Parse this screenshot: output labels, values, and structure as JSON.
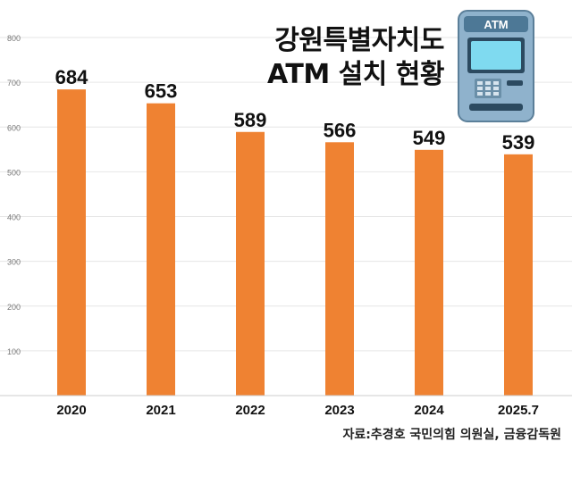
{
  "title": {
    "line1": "강원특별자치도",
    "line2": "ATM 설치 현황"
  },
  "source": "자료:추경호 국민의힘 의원실, 금융감독원",
  "atm_icon": {
    "label": "ATM"
  },
  "colors": {
    "bar": "#ef8232",
    "grid": "#e6e6e6",
    "text": "#111111",
    "tick": "#777777"
  },
  "chart_data": {
    "type": "bar",
    "categories": [
      "2020",
      "2021",
      "2022",
      "2023",
      "2024",
      "2025.7"
    ],
    "values": [
      684,
      653,
      589,
      566,
      549,
      539
    ],
    "ylim": [
      0,
      800
    ],
    "yticks": [
      100,
      200,
      300,
      400,
      500,
      600,
      700,
      800
    ],
    "grid": true,
    "data_labels": true
  }
}
